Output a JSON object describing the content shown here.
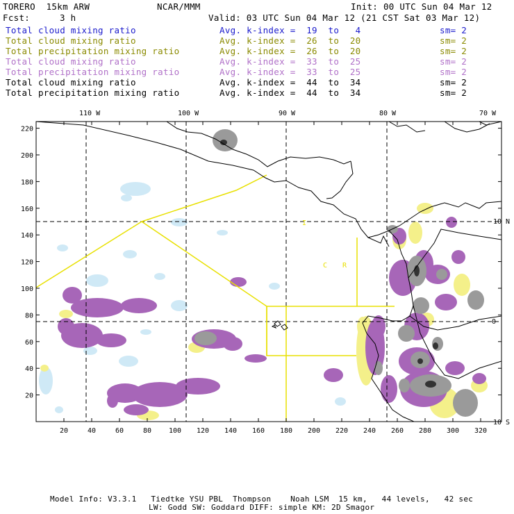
{
  "header": {
    "model": "TORERO  15km ARW",
    "org": "NCAR/MMM",
    "init": "Init: 00 UTC Sun 04 Mar 12",
    "fcst_label": "Fcst:",
    "fcst_value": "3 h",
    "valid": "Valid: 03 UTC Sun 04 Mar 12 (21 CST Sat 03 Mar 12)"
  },
  "legend": [
    {
      "field": "Total cloud mixing ratio",
      "kindex": "Avg. k-index =  19  to   4",
      "sm": "sm= 2",
      "color": "#1a1acc"
    },
    {
      "field": "Total cloud mixing ratio",
      "kindex": "Avg. k-index =  26  to  20",
      "sm": "sm= 2",
      "color": "#8a8a00"
    },
    {
      "field": "Total precipitation mixing ratio",
      "kindex": "Avg. k-index =  26  to  20",
      "sm": "sm= 2",
      "color": "#8a8a00"
    },
    {
      "field": "Total cloud mixing ratio",
      "kindex": "Avg. k-index =  33  to  25",
      "sm": "sm= 2",
      "color": "#b070c8"
    },
    {
      "field": "Total precipitation mixing ratio",
      "kindex": "Avg. k-index =  33  to  25",
      "sm": "sm= 2",
      "color": "#b070c8"
    },
    {
      "field": "Total cloud mixing ratio",
      "kindex": "Avg. k-index =  44  to  34",
      "sm": "sm= 2",
      "color": "#000000"
    },
    {
      "field": "Total precipitation mixing ratio",
      "kindex": "Avg. k-index =  44  to  34",
      "sm": "sm= 2",
      "color": "#000000"
    }
  ],
  "map": {
    "lon_labels": [
      "110 W",
      "100 W",
      "90 W",
      "80 W",
      "70 W"
    ],
    "lat_labels": [
      "10 N",
      "0",
      "10 S"
    ],
    "x_ticks": [
      "20",
      "40",
      "60",
      "80",
      "100",
      "120",
      "140",
      "160",
      "180",
      "200",
      "220",
      "240",
      "260",
      "280",
      "300",
      "320"
    ],
    "y_ticks": [
      "20",
      "40",
      "60",
      "80",
      "100",
      "120",
      "140",
      "160",
      "180",
      "200",
      "220"
    ],
    "region_labels": [
      "I",
      "C",
      "R"
    ],
    "colors": {
      "cyan": "#cfe9f6",
      "yellow": "#f4f08a",
      "violet": "#a766b8",
      "gray": "#9a9a9a",
      "dark": "#333333",
      "line_yellow": "#e8e000"
    }
  },
  "footer": {
    "line1": "Model Info: V3.3.1   Tiedtke YSU PBL  Thompson    Noah LSM  15 km,   44 levels,   42 sec",
    "line2": "LW: Godd SW: Goddard DIFF: simple KM: 2D Smagor"
  }
}
